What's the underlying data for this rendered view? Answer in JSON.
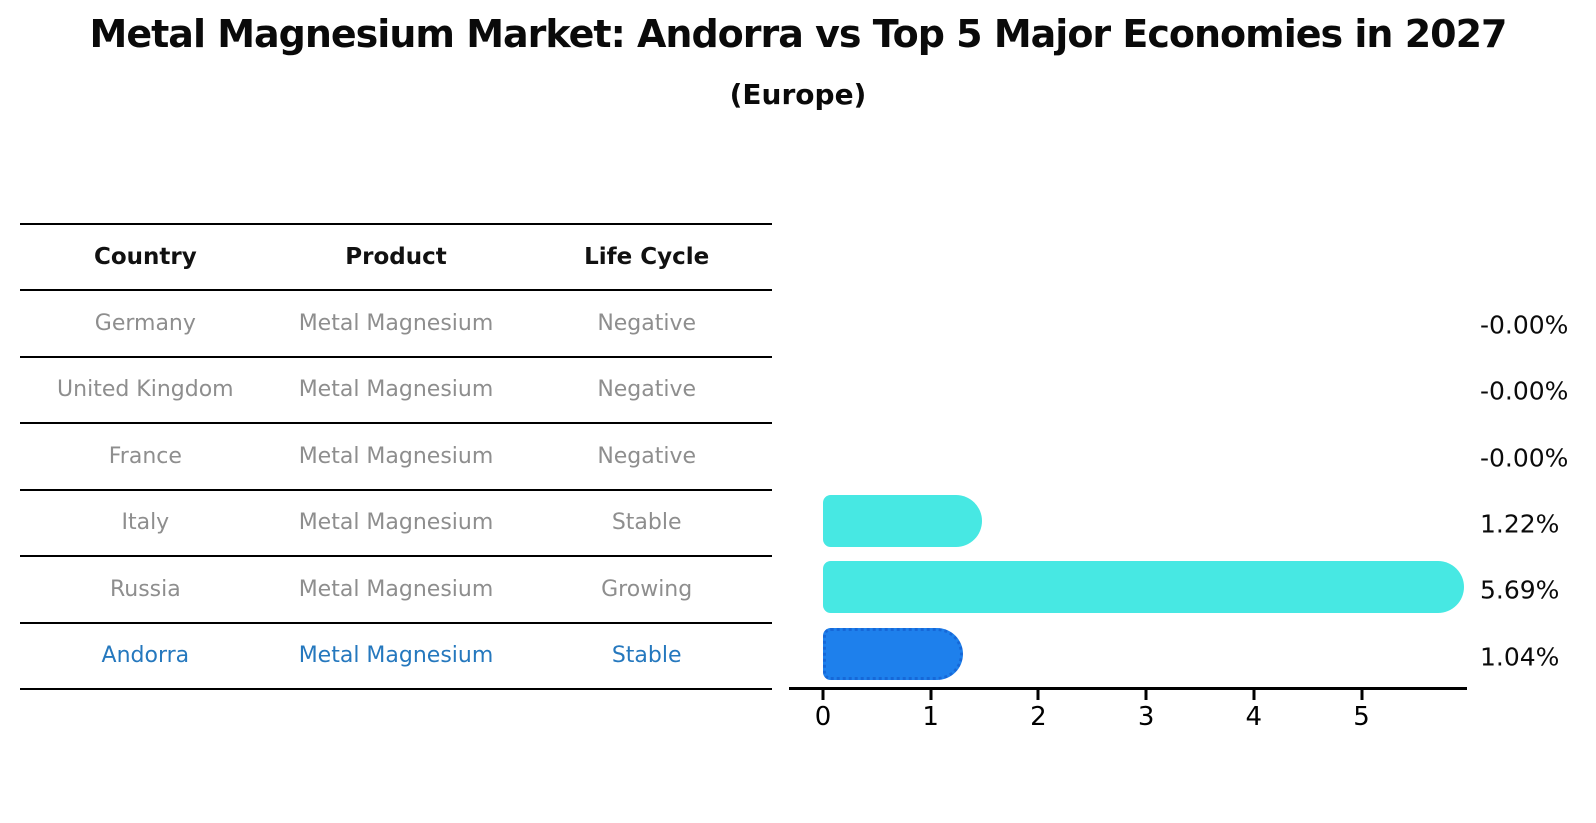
{
  "header": {
    "title": "Metal Magnesium Market: Andorra vs Top 5 Major Economies in 2027",
    "subtitle": "(Europe)"
  },
  "table": {
    "columns": [
      "Country",
      "Product",
      "Life Cycle"
    ],
    "rows": [
      {
        "country": "Germany",
        "product": "Metal Magnesium",
        "life_cycle": "Negative",
        "highlight": false
      },
      {
        "country": "United Kingdom",
        "product": "Metal Magnesium",
        "life_cycle": "Negative",
        "highlight": false
      },
      {
        "country": "France",
        "product": "Metal Magnesium",
        "life_cycle": "Negative",
        "highlight": false
      },
      {
        "country": "Italy",
        "product": "Metal Magnesium",
        "life_cycle": "Stable",
        "highlight": false
      },
      {
        "country": "Russia",
        "product": "Metal Magnesium",
        "life_cycle": "Growing",
        "highlight": false
      },
      {
        "country": "Andorra",
        "product": "Metal Magnesium",
        "life_cycle": "Stable",
        "highlight": true
      }
    ]
  },
  "chart_data": {
    "type": "bar",
    "orientation": "horizontal",
    "title": "Metal Magnesium Market: Andorra vs Top 5 Major Economies in 2027",
    "subtitle": "(Europe)",
    "categories": [
      "Germany",
      "United Kingdom",
      "France",
      "Italy",
      "Russia",
      "Andorra"
    ],
    "values": [
      -0.0,
      -0.0,
      -0.0,
      1.22,
      5.69,
      1.04
    ],
    "value_labels": [
      "-0.00%",
      "-0.00%",
      "-0.00%",
      "1.22%",
      "5.69%",
      "1.04%"
    ],
    "unit": "%",
    "xticks": [
      0,
      1,
      2,
      3,
      4,
      5
    ],
    "xlim": [
      0,
      6
    ],
    "grid": false,
    "legend": "none",
    "highlight_index": 5,
    "colors": {
      "bar": "#47E8E3",
      "highlight_bar": "#1E80EC",
      "highlight_border": "#1668D8",
      "highlight_text": "#2578BE",
      "table_text": "#8E8E8E",
      "header_text": "#111111",
      "axis": "#000000",
      "value_label": "#0B0B0B"
    }
  }
}
